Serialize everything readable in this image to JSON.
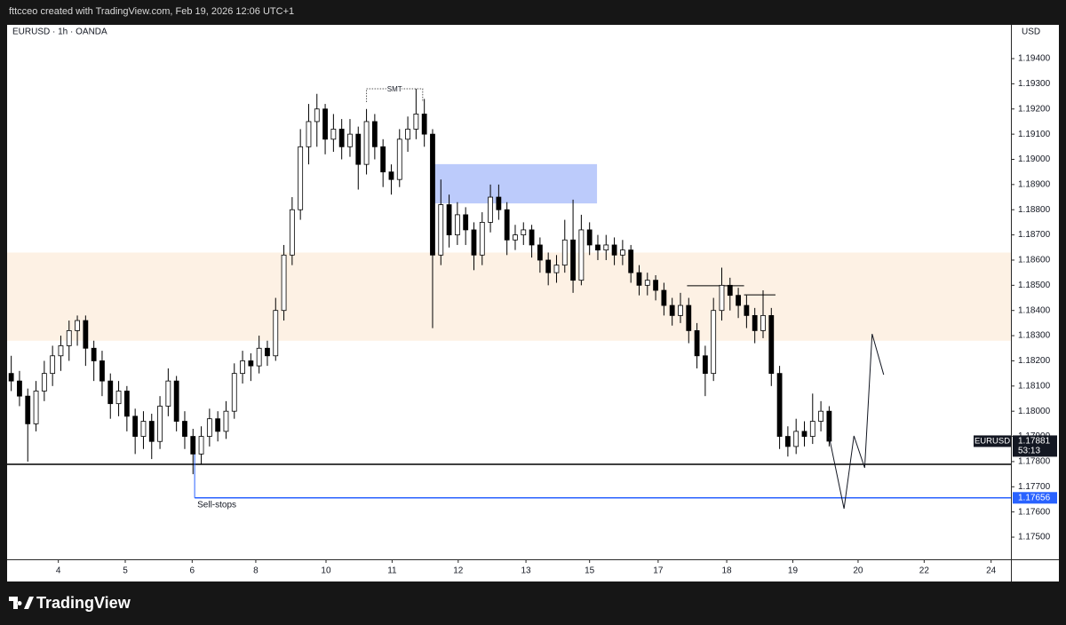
{
  "chart_data": {
    "type": "candlestick",
    "header": "fttcceo created with TradingView.com, Feb 19, 2026 12:06 UTC+1",
    "symbol": "EURUSD · 1h · OANDA",
    "currency": "USD",
    "brand": "TradingView",
    "up_color": "#ffffff",
    "down_color": "#000000",
    "wick_color": "#000000",
    "ylim": [
      1.17412,
      1.19534
    ],
    "yticks": [
      {
        "value": 1.194,
        "label": "1.19400"
      },
      {
        "value": 1.193,
        "label": "1.19300"
      },
      {
        "value": 1.192,
        "label": "1.19200"
      },
      {
        "value": 1.191,
        "label": "1.19100"
      },
      {
        "value": 1.19,
        "label": "1.19000"
      },
      {
        "value": 1.189,
        "label": "1.18900"
      },
      {
        "value": 1.188,
        "label": "1.18800"
      },
      {
        "value": 1.187,
        "label": "1.18700"
      },
      {
        "value": 1.186,
        "label": "1.18600"
      },
      {
        "value": 1.185,
        "label": "1.18500"
      },
      {
        "value": 1.184,
        "label": "1.18400"
      },
      {
        "value": 1.183,
        "label": "1.18300"
      },
      {
        "value": 1.182,
        "label": "1.18200"
      },
      {
        "value": 1.181,
        "label": "1.18100"
      },
      {
        "value": 1.18,
        "label": "1.18000"
      },
      {
        "value": 1.179,
        "label": "1.17900"
      },
      {
        "value": 1.178,
        "label": "1.17800"
      },
      {
        "value": 1.177,
        "label": "1.17700"
      },
      {
        "value": 1.176,
        "label": "1.17600"
      },
      {
        "value": 1.175,
        "label": "1.17500"
      }
    ],
    "xlim": [
      0,
      121.5
    ],
    "xticks": [
      {
        "value": 6.2,
        "label": "4"
      },
      {
        "value": 14.3,
        "label": "5"
      },
      {
        "value": 22.4,
        "label": "6"
      },
      {
        "value": 30.1,
        "label": "8"
      },
      {
        "value": 38.6,
        "label": "10"
      },
      {
        "value": 46.6,
        "label": "11"
      },
      {
        "value": 54.6,
        "label": "12"
      },
      {
        "value": 62.8,
        "label": "13"
      },
      {
        "value": 70.5,
        "label": "15"
      },
      {
        "value": 78.8,
        "label": "17"
      },
      {
        "value": 87.1,
        "label": "18"
      },
      {
        "value": 95.1,
        "label": "19"
      },
      {
        "value": 103,
        "label": "20"
      },
      {
        "value": 111,
        "label": "22"
      },
      {
        "value": 119.1,
        "label": "24"
      }
    ],
    "ohlc": [
      [
        1.1815,
        1.1822,
        1.1808,
        1.1812
      ],
      [
        1.1812,
        1.1816,
        1.1802,
        1.1806
      ],
      [
        1.1806,
        1.1809,
        1.178,
        1.1795
      ],
      [
        1.1795,
        1.1812,
        1.1792,
        1.1808
      ],
      [
        1.1808,
        1.182,
        1.1804,
        1.1815
      ],
      [
        1.1815,
        1.1826,
        1.181,
        1.1822
      ],
      [
        1.1822,
        1.183,
        1.1816,
        1.1826
      ],
      [
        1.1826,
        1.1836,
        1.182,
        1.1832
      ],
      [
        1.1832,
        1.1838,
        1.1826,
        1.1836
      ],
      [
        1.1836,
        1.1838,
        1.1818,
        1.1825
      ],
      [
        1.1825,
        1.1828,
        1.1812,
        1.182
      ],
      [
        1.182,
        1.1824,
        1.1806,
        1.1812
      ],
      [
        1.1812,
        1.1815,
        1.1797,
        1.1803
      ],
      [
        1.1803,
        1.1812,
        1.1798,
        1.1808
      ],
      [
        1.1808,
        1.181,
        1.1792,
        1.1798
      ],
      [
        1.1798,
        1.1801,
        1.1783,
        1.179
      ],
      [
        1.179,
        1.18,
        1.1785,
        1.1796
      ],
      [
        1.1796,
        1.1799,
        1.1781,
        1.1788
      ],
      [
        1.1788,
        1.1806,
        1.1785,
        1.1802
      ],
      [
        1.1802,
        1.1817,
        1.1798,
        1.1812
      ],
      [
        1.1812,
        1.1814,
        1.1792,
        1.1796
      ],
      [
        1.1796,
        1.18,
        1.1785,
        1.179
      ],
      [
        1.179,
        1.1793,
        1.1775,
        1.1783
      ],
      [
        1.1783,
        1.1794,
        1.1779,
        1.179
      ],
      [
        1.179,
        1.1801,
        1.1786,
        1.1797
      ],
      [
        1.1797,
        1.18,
        1.1788,
        1.1792
      ],
      [
        1.1792,
        1.1804,
        1.1789,
        1.18
      ],
      [
        1.18,
        1.1819,
        1.1797,
        1.1815
      ],
      [
        1.1815,
        1.1824,
        1.1811,
        1.182
      ],
      [
        1.182,
        1.1823,
        1.1812,
        1.1818
      ],
      [
        1.1818,
        1.183,
        1.1815,
        1.1825
      ],
      [
        1.1825,
        1.1828,
        1.1818,
        1.1822
      ],
      [
        1.1822,
        1.1845,
        1.182,
        1.184
      ],
      [
        1.184,
        1.1866,
        1.1836,
        1.1862
      ],
      [
        1.1862,
        1.1885,
        1.1858,
        1.188
      ],
      [
        1.188,
        1.1912,
        1.1876,
        1.1905
      ],
      [
        1.1905,
        1.1922,
        1.1898,
        1.1915
      ],
      [
        1.1915,
        1.1926,
        1.1905,
        1.192
      ],
      [
        1.192,
        1.1922,
        1.1902,
        1.1908
      ],
      [
        1.1908,
        1.1918,
        1.1903,
        1.1912
      ],
      [
        1.1912,
        1.1916,
        1.19,
        1.1905
      ],
      [
        1.1905,
        1.1916,
        1.1901,
        1.191
      ],
      [
        1.191,
        1.1913,
        1.1888,
        1.1898
      ],
      [
        1.1898,
        1.192,
        1.1894,
        1.1915
      ],
      [
        1.1915,
        1.1918,
        1.19,
        1.1905
      ],
      [
        1.1905,
        1.1908,
        1.1889,
        1.1895
      ],
      [
        1.1895,
        1.1898,
        1.1886,
        1.1892
      ],
      [
        1.1892,
        1.1912,
        1.1889,
        1.1908
      ],
      [
        1.1908,
        1.1917,
        1.1903,
        1.1912
      ],
      [
        1.1912,
        1.1928,
        1.1908,
        1.1918
      ],
      [
        1.1918,
        1.1924,
        1.1905,
        1.191
      ],
      [
        1.191,
        1.1912,
        1.1833,
        1.1862
      ],
      [
        1.1862,
        1.1892,
        1.1858,
        1.1882
      ],
      [
        1.1882,
        1.1886,
        1.1865,
        1.187
      ],
      [
        1.187,
        1.1883,
        1.1866,
        1.1878
      ],
      [
        1.1878,
        1.1881,
        1.1866,
        1.1872
      ],
      [
        1.1872,
        1.1875,
        1.1856,
        1.1862
      ],
      [
        1.1862,
        1.1879,
        1.1858,
        1.1875
      ],
      [
        1.1875,
        1.189,
        1.1871,
        1.1885
      ],
      [
        1.1885,
        1.189,
        1.1876,
        1.188
      ],
      [
        1.188,
        1.1883,
        1.1862,
        1.1868
      ],
      [
        1.1868,
        1.1874,
        1.1864,
        1.187
      ],
      [
        1.187,
        1.1875,
        1.1866,
        1.1872
      ],
      [
        1.1872,
        1.1874,
        1.1861,
        1.1866
      ],
      [
        1.1866,
        1.1869,
        1.1855,
        1.186
      ],
      [
        1.186,
        1.1863,
        1.185,
        1.1855
      ],
      [
        1.1855,
        1.1862,
        1.1851,
        1.1858
      ],
      [
        1.1858,
        1.1876,
        1.1855,
        1.1868
      ],
      [
        1.1868,
        1.1884,
        1.1847,
        1.1852
      ],
      [
        1.1852,
        1.1878,
        1.185,
        1.1872
      ],
      [
        1.1872,
        1.1875,
        1.1862,
        1.1866
      ],
      [
        1.1866,
        1.187,
        1.186,
        1.1864
      ],
      [
        1.1864,
        1.187,
        1.186,
        1.1866
      ],
      [
        1.1866,
        1.1869,
        1.1858,
        1.1862
      ],
      [
        1.1862,
        1.1868,
        1.1858,
        1.1864
      ],
      [
        1.1864,
        1.1866,
        1.1851,
        1.1855
      ],
      [
        1.1855,
        1.1858,
        1.1846,
        1.185
      ],
      [
        1.185,
        1.1855,
        1.1846,
        1.1852
      ],
      [
        1.1852,
        1.1854,
        1.1844,
        1.1848
      ],
      [
        1.1848,
        1.1851,
        1.1838,
        1.1842
      ],
      [
        1.1842,
        1.1845,
        1.1834,
        1.1838
      ],
      [
        1.1838,
        1.1847,
        1.1835,
        1.1842
      ],
      [
        1.1842,
        1.1845,
        1.1827,
        1.1832
      ],
      [
        1.1832,
        1.1835,
        1.1817,
        1.1822
      ],
      [
        1.1822,
        1.1826,
        1.1806,
        1.1815
      ],
      [
        1.1815,
        1.1845,
        1.1812,
        1.184
      ],
      [
        1.184,
        1.1857,
        1.1836,
        1.185
      ],
      [
        1.185,
        1.1853,
        1.184,
        1.1846
      ],
      [
        1.1846,
        1.1849,
        1.1837,
        1.1842
      ],
      [
        1.1842,
        1.1846,
        1.1833,
        1.1838
      ],
      [
        1.1838,
        1.1841,
        1.1827,
        1.1832
      ],
      [
        1.1832,
        1.1848,
        1.1829,
        1.1838
      ],
      [
        1.1838,
        1.1841,
        1.181,
        1.1815
      ],
      [
        1.1815,
        1.1818,
        1.1785,
        1.179
      ],
      [
        1.179,
        1.1794,
        1.1782,
        1.1786
      ],
      [
        1.1786,
        1.1797,
        1.1783,
        1.1792
      ],
      [
        1.1792,
        1.1796,
        1.1786,
        1.179
      ],
      [
        1.179,
        1.1807,
        1.1787,
        1.1796
      ],
      [
        1.1796,
        1.1804,
        1.1792,
        1.18
      ],
      [
        1.18,
        1.1802,
        1.1786,
        1.17881
      ]
    ],
    "zones": [
      {
        "top": 1.1863,
        "bottom": 1.1828,
        "x_from": 0,
        "x_to": 121.5,
        "color": "#fdf1e4"
      },
      {
        "top": 1.18981,
        "bottom": 1.18825,
        "x_from": 51.6,
        "x_to": 71.4,
        "color": "#bccbfb"
      }
    ],
    "levels": [
      {
        "value": 1.17789,
        "x_from": 0,
        "x_to": 121.5,
        "color": "#000000"
      },
      {
        "value": 1.18498,
        "x_from": 82.3,
        "x_to": 89.2,
        "color": "#000000"
      },
      {
        "value": 1.18462,
        "x_from": 89.2,
        "x_to": 93.0,
        "color": "#000000"
      }
    ],
    "sell_stops": {
      "label": "Sell-stops",
      "value": 1.17656,
      "x_from": 22.7,
      "x_to": 121.5,
      "color": "#2962ff"
    },
    "smt": {
      "text": "SMT",
      "value": 1.1928,
      "x_from": 43.5,
      "x_to": 50.3
    },
    "projection": {
      "x": [
        99.5,
        101.3,
        102.5,
        103.8,
        104.7,
        106.1
      ],
      "y": [
        1.17898,
        1.17613,
        1.17902,
        1.17775,
        1.18307,
        1.18145
      ]
    },
    "last_price": {
      "symbol": "EURUSD",
      "value": 1.17881,
      "countdown": "53:13"
    }
  }
}
